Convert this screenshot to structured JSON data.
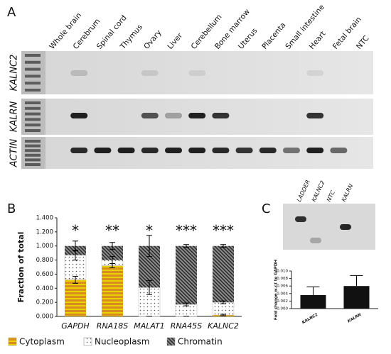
{
  "panel_labels": [
    "A",
    "B",
    "C"
  ],
  "gel_a": {
    "lanes": [
      "Whole brain",
      "Cerebrum",
      "Spinal cord",
      "Thymus",
      "Ovary",
      "Liver",
      "Cerebellum",
      "Bone marrow",
      "Uterus",
      "Placenta",
      "Small intestine",
      "Heart",
      "Fetal brain",
      "NTC"
    ],
    "rows": [
      "KALNC2",
      "KALRN",
      "ACTIN"
    ]
  },
  "gel_c": {
    "lanes": [
      "LADDER",
      "KALNC2",
      "NTC",
      "KALRN"
    ]
  },
  "chart_data": [
    {
      "type": "stacked-bar",
      "ylabel": "Fraction of total",
      "categories": [
        "GAPDH",
        "RNA18S",
        "MALAT1",
        "RNA45S",
        "KALNC2"
      ],
      "annotations": [
        "*",
        "**",
        "*",
        "***",
        "***"
      ],
      "series": [
        {
          "name": "Cytoplasm",
          "color": "#d98c1f",
          "pattern": "horizontal",
          "values": [
            0.52,
            0.72,
            0.0,
            0.0,
            0.02
          ],
          "errors": [
            0.05,
            0.03,
            0.0,
            0.0,
            0.01
          ]
        },
        {
          "name": "Nucleoplasm",
          "color": "#ffffff",
          "pattern": "dots",
          "values": [
            0.35,
            0.08,
            0.41,
            0.17,
            0.18
          ],
          "errors": [
            0.07,
            0.05,
            0.1,
            0.02,
            0.02
          ]
        },
        {
          "name": "Chromatin",
          "color": "#8a8a8a",
          "pattern": "diagonal",
          "values": [
            0.13,
            0.2,
            0.59,
            0.83,
            0.8
          ],
          "errors": [
            0.07,
            0.05,
            0.15,
            0.02,
            0.02
          ]
        }
      ],
      "ylim": [
        0,
        1.4
      ],
      "yticks": [
        {
          "value": 0,
          "label": "0.000"
        },
        {
          "value": 0.2,
          "label": "0.200"
        },
        {
          "value": 0.4,
          "label": "0.400"
        },
        {
          "value": 0.6,
          "label": "0.600"
        },
        {
          "value": 0.8,
          "label": "0.800"
        },
        {
          "value": 1.0,
          "label": "1.000"
        },
        {
          "value": 1.2,
          "label": "1.200"
        },
        {
          "value": 1.4,
          "label": "1.400"
        }
      ]
    },
    {
      "type": "bar",
      "ylabel": "Fold change w.r.t to GAPDH",
      "color": "#111111",
      "categories": [
        "KALNC2",
        "KALRN"
      ],
      "values": [
        0.0036,
        0.006
      ],
      "errors": [
        0.0022,
        0.0028
      ],
      "ylim": [
        0,
        0.01
      ],
      "yticks": [
        {
          "value": 0,
          "label": "0.000"
        },
        {
          "value": 0.002,
          "label": "0.002"
        },
        {
          "value": 0.004,
          "label": "0.004"
        },
        {
          "value": 0.006,
          "label": "0.006"
        },
        {
          "value": 0.008,
          "label": "0.008"
        },
        {
          "value": 0.01,
          "label": "0.010"
        }
      ]
    }
  ]
}
